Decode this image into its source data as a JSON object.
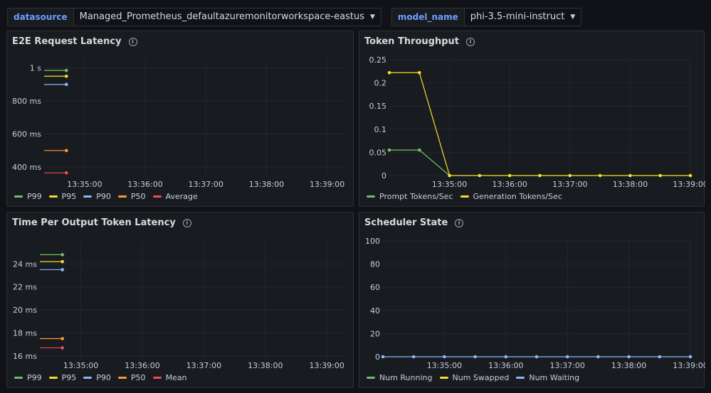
{
  "variables": [
    {
      "label": "datasource",
      "value": "Managed_Prometheus_defaultazuremonitorworkspace-eastus"
    },
    {
      "label": "model_name",
      "value": "phi-3.5-mini-instruct"
    }
  ],
  "colors": {
    "green": "#73bf69",
    "yellow": "#fade2a",
    "blue": "#8ab8ff",
    "orange": "#ff9830",
    "red": "#f2495c",
    "grid": "#24272c",
    "axis_text": "#ccccdc"
  },
  "panels": [
    {
      "title": "E2E Request Latency",
      "legend": [
        {
          "name": "P99",
          "color": "#73bf69"
        },
        {
          "name": "P95",
          "color": "#fade2a"
        },
        {
          "name": "P90",
          "color": "#8ab8ff"
        },
        {
          "name": "P50",
          "color": "#ff9830"
        },
        {
          "name": "Average",
          "color": "#f2495c"
        }
      ]
    },
    {
      "title": "Token Throughput",
      "legend": [
        {
          "name": "Prompt Tokens/Sec",
          "color": "#73bf69"
        },
        {
          "name": "Generation Tokens/Sec",
          "color": "#fade2a"
        }
      ]
    },
    {
      "title": "Time Per Output Token Latency",
      "legend": [
        {
          "name": "P99",
          "color": "#73bf69"
        },
        {
          "name": "P95",
          "color": "#fade2a"
        },
        {
          "name": "P90",
          "color": "#8ab8ff"
        },
        {
          "name": "P50",
          "color": "#ff9830"
        },
        {
          "name": "Mean",
          "color": "#f2495c"
        }
      ]
    },
    {
      "title": "Scheduler State",
      "legend": [
        {
          "name": "Num Running",
          "color": "#73bf69"
        },
        {
          "name": "Num Swapped",
          "color": "#fade2a"
        },
        {
          "name": "Num Waiting",
          "color": "#8ab8ff"
        }
      ]
    }
  ],
  "chart_data": [
    {
      "type": "line",
      "title": "E2E Request Latency",
      "x_ticks": [
        "13:35:00",
        "13:36:00",
        "13:37:00",
        "13:38:00",
        "13:39:00"
      ],
      "y_ticks": [
        "1 s",
        "800 ms",
        "600 ms",
        "400 ms"
      ],
      "y_tick_values": [
        1000,
        800,
        600,
        400
      ],
      "ylim": [
        340,
        1050
      ],
      "xlim": [
        0,
        300
      ],
      "x_tick_values": [
        40,
        100,
        160,
        220,
        280
      ],
      "series": [
        {
          "name": "P99",
          "color": "#73bf69",
          "x": [
            0,
            22
          ],
          "y": [
            985,
            985
          ]
        },
        {
          "name": "P95",
          "color": "#fade2a",
          "x": [
            0,
            22
          ],
          "y": [
            950,
            950
          ]
        },
        {
          "name": "P90",
          "color": "#8ab8ff",
          "x": [
            0,
            22
          ],
          "y": [
            900,
            900
          ]
        },
        {
          "name": "P50",
          "color": "#ff9830",
          "x": [
            0,
            22
          ],
          "y": [
            500,
            500
          ]
        },
        {
          "name": "Average",
          "color": "#f2495c",
          "x": [
            0,
            22
          ],
          "y": [
            365,
            365
          ]
        }
      ]
    },
    {
      "type": "line",
      "title": "Token Throughput",
      "x_ticks": [
        "13:35:00",
        "13:36:00",
        "13:37:00",
        "13:38:00",
        "13:39:00"
      ],
      "y_ticks": [
        "0.25",
        "0.2",
        "0.15",
        "0.1",
        "0.05",
        "0"
      ],
      "y_tick_values": [
        0.25,
        0.2,
        0.15,
        0.1,
        0.05,
        0
      ],
      "ylim": [
        0,
        0.25
      ],
      "xlim": [
        0,
        300
      ],
      "x_tick_values": [
        60,
        120,
        180,
        240,
        300
      ],
      "series": [
        {
          "name": "Prompt Tokens/Sec",
          "color": "#73bf69",
          "x": [
            0,
            30,
            60
          ],
          "y": [
            0.055,
            0.055,
            0
          ]
        },
        {
          "name": "Generation Tokens/Sec",
          "color": "#fade2a",
          "x": [
            0,
            30,
            60,
            90,
            120,
            150,
            180,
            210,
            240,
            270,
            300
          ],
          "y": [
            0.222,
            0.222,
            0,
            0,
            0,
            0,
            0,
            0,
            0,
            0,
            0
          ]
        }
      ]
    },
    {
      "type": "line",
      "title": "Time Per Output Token Latency",
      "x_ticks": [
        "13:35:00",
        "13:36:00",
        "13:37:00",
        "13:38:00",
        "13:39:00"
      ],
      "y_ticks": [
        "24 ms",
        "22 ms",
        "20 ms",
        "18 ms",
        "16 ms"
      ],
      "y_tick_values": [
        24,
        22,
        20,
        18,
        16
      ],
      "ylim": [
        15.8,
        26
      ],
      "xlim": [
        0,
        300
      ],
      "x_tick_values": [
        40,
        100,
        160,
        220,
        280
      ],
      "series": [
        {
          "name": "P99",
          "color": "#73bf69",
          "x": [
            0,
            22
          ],
          "y": [
            24.8,
            24.8
          ]
        },
        {
          "name": "P95",
          "color": "#fade2a",
          "x": [
            0,
            22
          ],
          "y": [
            24.2,
            24.2
          ]
        },
        {
          "name": "P90",
          "color": "#8ab8ff",
          "x": [
            0,
            22
          ],
          "y": [
            23.5,
            23.5
          ]
        },
        {
          "name": "P50",
          "color": "#ff9830",
          "x": [
            0,
            22
          ],
          "y": [
            17.5,
            17.5
          ]
        },
        {
          "name": "Mean",
          "color": "#f2495c",
          "x": [
            0,
            22
          ],
          "y": [
            16.7,
            16.7
          ]
        }
      ]
    },
    {
      "type": "line",
      "title": "Scheduler State",
      "x_ticks": [
        "13:35:00",
        "13:36:00",
        "13:37:00",
        "13:38:00",
        "13:39:00"
      ],
      "y_ticks": [
        "100",
        "80",
        "60",
        "40",
        "20",
        "0"
      ],
      "y_tick_values": [
        100,
        80,
        60,
        40,
        20,
        0
      ],
      "ylim": [
        0,
        100
      ],
      "xlim": [
        0,
        300
      ],
      "x_tick_values": [
        60,
        120,
        180,
        240,
        300
      ],
      "series": [
        {
          "name": "Num Waiting",
          "color": "#8ab8ff",
          "x": [
            0,
            30,
            60,
            90,
            120,
            150,
            180,
            210,
            240,
            270,
            300
          ],
          "y": [
            0,
            0,
            0,
            0,
            0,
            0,
            0,
            0,
            0,
            0,
            0
          ]
        }
      ]
    }
  ]
}
